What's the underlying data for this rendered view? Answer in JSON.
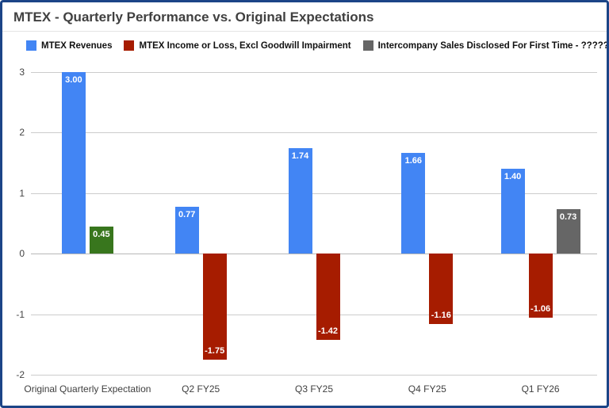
{
  "title": "MTEX - Quarterly Performance vs. Original Expectations",
  "colors": {
    "frame_border": "#1c4587",
    "revenues_blue": "#4285f4",
    "loss_red": "#a61c00",
    "expectation_income_green": "#38761d",
    "intercompany_gray": "#666666",
    "gridline": "#cccccc",
    "title_text": "#404040",
    "bar_label_text": "#ffffff"
  },
  "legend": [
    {
      "label": "MTEX Revenues",
      "color": "#4285f4"
    },
    {
      "label": "MTEX Income or Loss, Excl Goodwill Impairment",
      "color": "#a61c00"
    },
    {
      "label": "Intercompany Sales Disclosed For First Time - ?????",
      "color": "#666666"
    }
  ],
  "chart_data": {
    "type": "bar",
    "title": "MTEX - Quarterly Performance vs. Original Expectations",
    "categories": [
      "Original Quarterly Expectation",
      "Q2 FY25",
      "Q3 FY25",
      "Q4 FY25",
      "Q1 FY26"
    ],
    "series": [
      {
        "name": "MTEX Revenues",
        "color": "#4285f4",
        "values": [
          3.0,
          0.77,
          1.74,
          1.66,
          1.4
        ],
        "point_colors": [
          null,
          null,
          null,
          null,
          null
        ]
      },
      {
        "name": "MTEX Income or Loss, Excl Goodwill Impairment",
        "color": "#a61c00",
        "values": [
          0.45,
          -1.75,
          -1.42,
          -1.16,
          -1.06
        ],
        "point_colors": [
          "#38761d",
          null,
          null,
          null,
          null
        ]
      },
      {
        "name": "Intercompany Sales Disclosed For First Time - ?????",
        "color": "#666666",
        "values": [
          null,
          null,
          null,
          null,
          0.73
        ],
        "point_colors": [
          null,
          null,
          null,
          null,
          null
        ]
      }
    ],
    "xlabel": "",
    "ylabel": "",
    "ylim": [
      -2,
      3
    ],
    "yticks": [
      -2,
      -1,
      0,
      1,
      2,
      3
    ],
    "grid": true,
    "legend_position": "top",
    "value_label_decimals": 2
  }
}
